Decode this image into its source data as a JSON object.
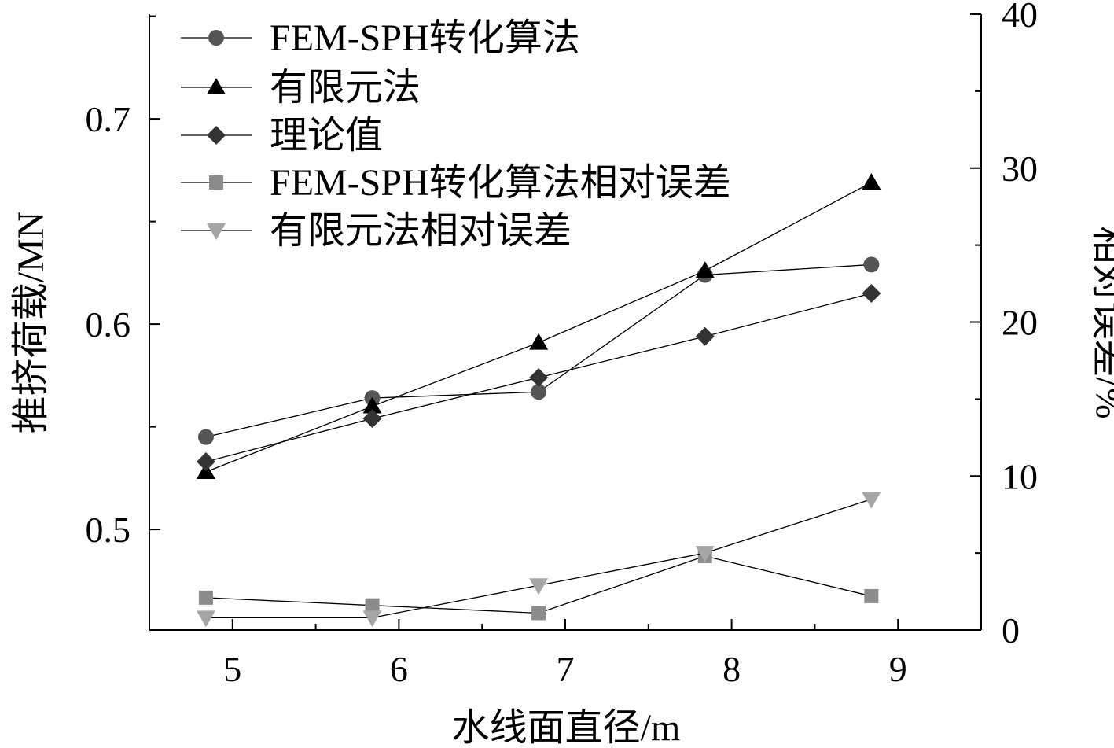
{
  "chart_data": {
    "type": "line",
    "xlabel": "水线面直径/m",
    "ylabel_left": "推挤荷载/MN",
    "ylabel_right": "相对误差/%",
    "x_ticks": [
      5,
      6,
      7,
      8,
      9
    ],
    "y_left_ticks": [
      "0.5",
      "0.6",
      "0.7"
    ],
    "y_right_ticks": [
      "0",
      "10",
      "20",
      "30",
      "40"
    ],
    "xlim": [
      4.5,
      9.5
    ],
    "ylim_left": [
      0.451,
      0.751
    ],
    "ylim_right": [
      0,
      40
    ],
    "grid": false,
    "legend_position": "top-left",
    "x": [
      4.84,
      5.84,
      6.84,
      7.84,
      8.84
    ],
    "series": [
      {
        "name": "FEM-SPH转化算法",
        "axis": "left",
        "marker": "circle",
        "color": "#555555",
        "values": [
          0.545,
          0.564,
          0.567,
          0.624,
          0.629
        ]
      },
      {
        "name": "有限元法",
        "axis": "left",
        "marker": "triangle-up",
        "color": "#000000",
        "values": [
          0.528,
          0.56,
          0.591,
          0.626,
          0.669
        ]
      },
      {
        "name": "理论值",
        "axis": "left",
        "marker": "diamond",
        "color": "#333333",
        "values": [
          0.533,
          0.554,
          0.574,
          0.594,
          0.615
        ]
      },
      {
        "name": "FEM-SPH转化算法相对误差",
        "axis": "right",
        "marker": "square",
        "color": "#8c8c8c",
        "values": [
          2.1,
          1.6,
          1.1,
          4.8,
          2.2
        ]
      },
      {
        "name": "有限元法相对误差",
        "axis": "right",
        "marker": "triangle-down",
        "color": "#a6a6a6",
        "values": [
          0.8,
          0.8,
          2.9,
          5.0,
          8.5
        ]
      }
    ]
  }
}
